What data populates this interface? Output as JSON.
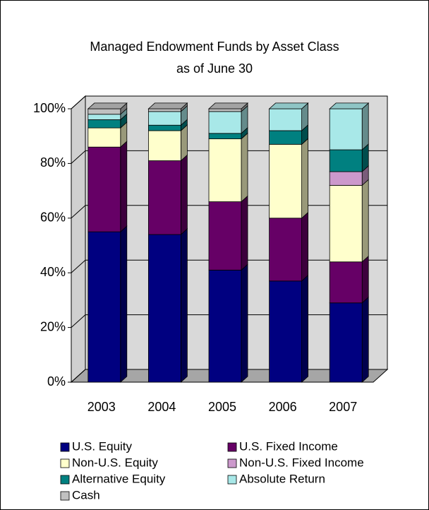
{
  "chart_data": {
    "type": "stacked_bar_3d",
    "title": "Managed Endowment Funds by Asset Class",
    "subtitle": "as of June 30",
    "categories": [
      "2003",
      "2004",
      "2005",
      "2006",
      "2007"
    ],
    "series": [
      {
        "name": "U.S. Equity",
        "color": "#000080",
        "values": [
          55,
          54,
          41,
          37,
          29
        ]
      },
      {
        "name": "U.S. Fixed Income",
        "color": "#660066",
        "values": [
          31,
          27,
          25,
          23,
          15
        ]
      },
      {
        "name": "Non-U.S. Equity",
        "color": "#ffffcc",
        "values": [
          7,
          11,
          23,
          27,
          28
        ]
      },
      {
        "name": "Non-U.S. Fixed Income",
        "color": "#cc99cc",
        "values": [
          0,
          0,
          0,
          0,
          5
        ]
      },
      {
        "name": "Alternative Equity",
        "color": "#008080",
        "values": [
          3,
          2,
          2,
          5,
          8
        ]
      },
      {
        "name": "Absolute Return",
        "color": "#a8e8e8",
        "values": [
          2,
          5,
          8,
          8,
          15
        ]
      },
      {
        "name": "Cash",
        "color": "#c0c0c0",
        "values": [
          2,
          1,
          1,
          0,
          0
        ]
      }
    ],
    "ylim": [
      0,
      100
    ],
    "yticks": [
      {
        "value": 0,
        "label": "0%"
      },
      {
        "value": 20,
        "label": "20%"
      },
      {
        "value": 40,
        "label": "40%"
      },
      {
        "value": 60,
        "label": "60%"
      },
      {
        "value": 80,
        "label": "80%"
      },
      {
        "value": 100,
        "label": "100%"
      }
    ],
    "grid": true
  }
}
